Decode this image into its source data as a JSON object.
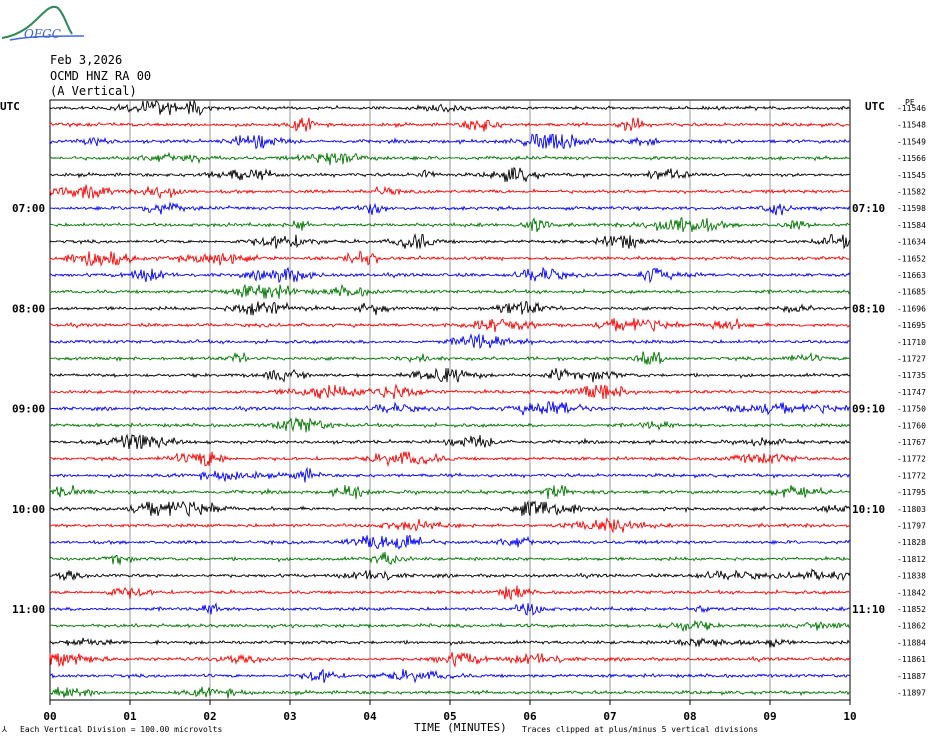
{
  "logo": {
    "text": "OFGC"
  },
  "header": {
    "date": "Feb 3,2026",
    "station": "OCMD HNZ RA 00",
    "component": "(A Vertical)"
  },
  "left_tz": "UTC",
  "right_tz": "UTC",
  "right_top_small": "PE",
  "footer": {
    "scale_note": "Each Vertical Division =  100.00 microvolts",
    "xlabel": "TIME (MINUTES)",
    "clip_note": "Traces clipped at plus/minus 5 vertical divisions"
  },
  "colors": [
    "#000000",
    "#ff0000",
    "#0000ff",
    "#007700"
  ],
  "chart_data": {
    "type": "line",
    "title": "",
    "xlabel": "TIME (MINUTES)",
    "xlim": [
      0,
      10
    ],
    "x_ticks": [
      "00",
      "01",
      "02",
      "03",
      "04",
      "05",
      "06",
      "07",
      "08",
      "09",
      "10"
    ],
    "grid": "vertical",
    "left_time_labels": [
      {
        "row": 6,
        "text": "07:00"
      },
      {
        "row": 12,
        "text": "08:00"
      },
      {
        "row": 18,
        "text": "09:00"
      },
      {
        "row": 24,
        "text": "10:00"
      },
      {
        "row": 30,
        "text": "11:00"
      }
    ],
    "right_time_labels": [
      {
        "row": 6,
        "text": "07:10"
      },
      {
        "row": 12,
        "text": "08:10"
      },
      {
        "row": 18,
        "text": "09:10"
      },
      {
        "row": 24,
        "text": "10:10"
      },
      {
        "row": 30,
        "text": "11:10"
      }
    ],
    "row_values": [
      "-11546",
      "-11548",
      "-11549",
      "-11566",
      "-11545",
      "-11582",
      "-11598",
      "-11584",
      "-11634",
      "-11652",
      "-11663",
      "-11685",
      "-11696",
      "-11695",
      "-11710",
      "-11727",
      "-11735",
      "-11747",
      "-11750",
      "-11760",
      "-11767",
      "-11772",
      "-11772",
      "-11795",
      "-11803",
      "-11797",
      "-11828",
      "-11812",
      "-11838",
      "-11842",
      "-11852",
      "-11862",
      "-11884",
      "-11861",
      "-11887",
      "-11897"
    ]
  }
}
